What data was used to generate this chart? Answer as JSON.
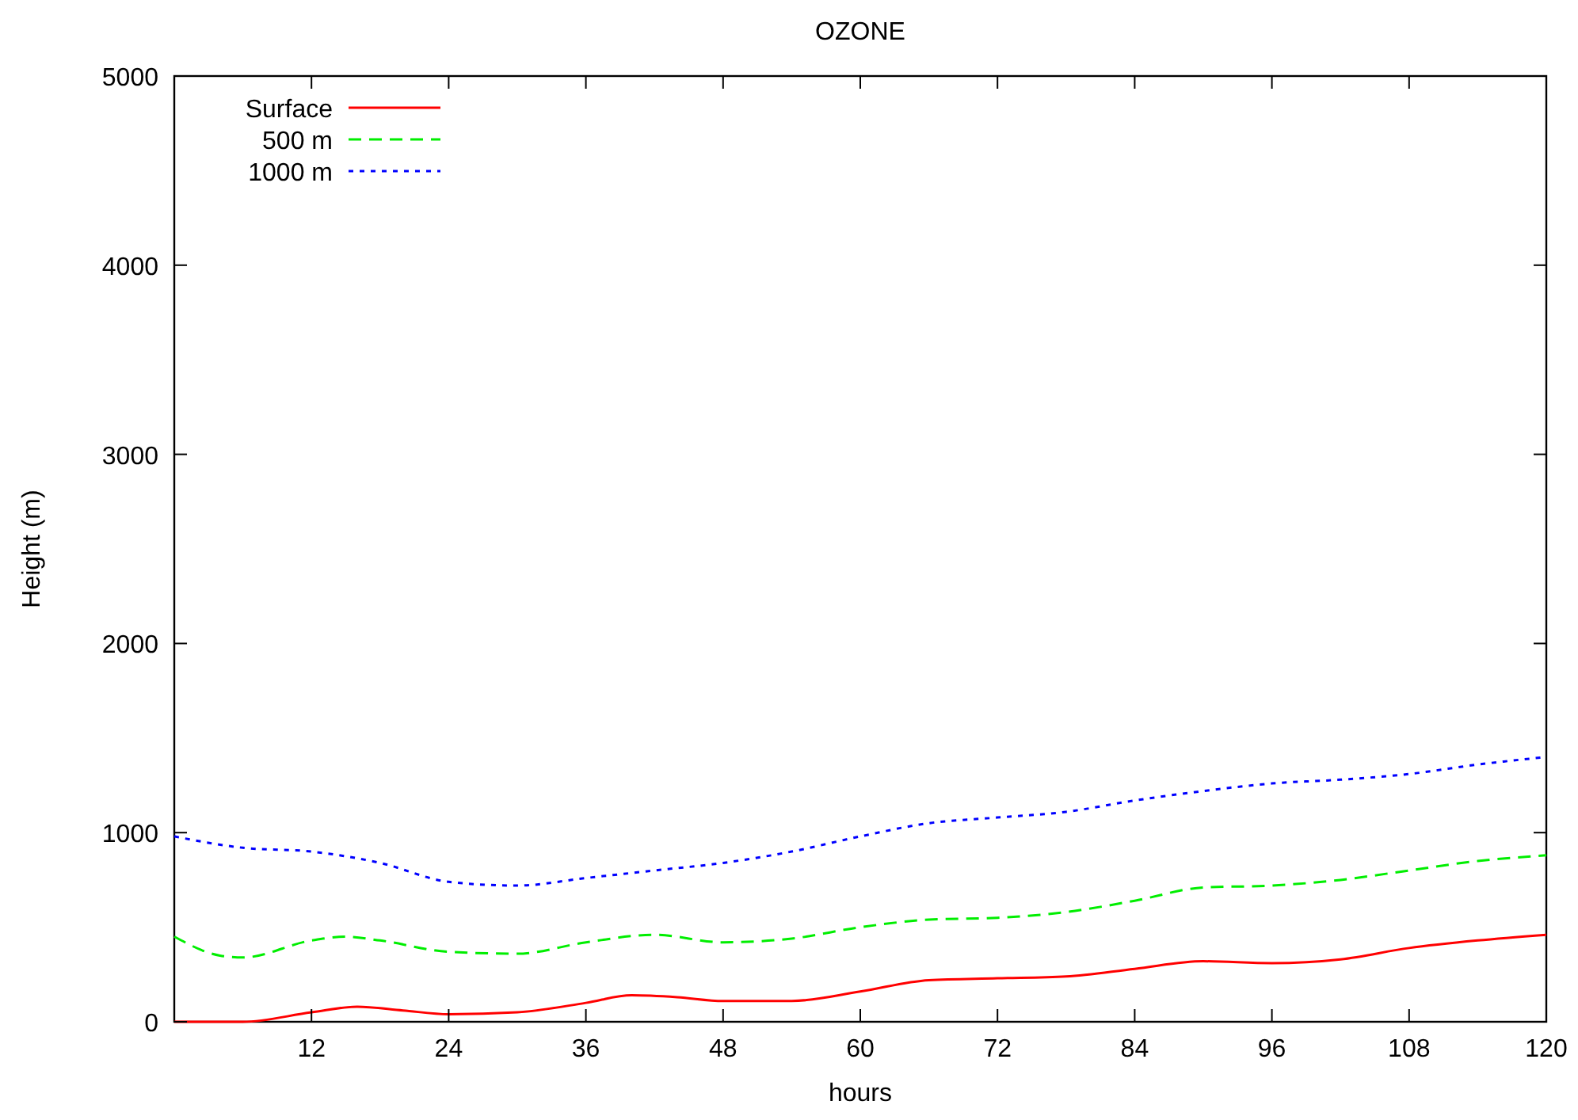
{
  "chart_data": {
    "type": "line",
    "title": "OZONE",
    "xlabel": "hours",
    "ylabel": "Height (m)",
    "xlim": [
      0,
      120
    ],
    "ylim": [
      0,
      5000
    ],
    "xticks": [
      12,
      24,
      36,
      48,
      60,
      72,
      84,
      96,
      108,
      120
    ],
    "yticks": [
      0,
      1000,
      2000,
      3000,
      4000,
      5000
    ],
    "legend": "top left",
    "grid": false,
    "series": [
      {
        "name": "Surface",
        "color": "#ff0000",
        "line_style": "solid",
        "x": [
          0,
          6,
          12,
          16,
          20,
          24,
          30,
          36,
          40,
          44,
          48,
          54,
          60,
          66,
          72,
          78,
          84,
          90,
          96,
          102,
          108,
          114,
          120
        ],
        "values": [
          0,
          0,
          50,
          80,
          60,
          40,
          50,
          100,
          140,
          130,
          110,
          110,
          160,
          220,
          230,
          240,
          280,
          320,
          310,
          330,
          390,
          430,
          460
        ]
      },
      {
        "name": "500 m",
        "color": "#00ee00",
        "line_style": "dashed",
        "x": [
          0,
          4,
          6,
          12,
          15,
          18,
          24,
          30,
          36,
          42,
          48,
          54,
          60,
          66,
          72,
          78,
          84,
          90,
          96,
          102,
          108,
          114,
          120
        ],
        "values": [
          450,
          350,
          340,
          430,
          450,
          430,
          370,
          360,
          420,
          460,
          420,
          440,
          500,
          540,
          550,
          580,
          640,
          710,
          720,
          750,
          800,
          850,
          880
        ]
      },
      {
        "name": "1000 m",
        "color": "#0000ff",
        "line_style": "dotted",
        "x": [
          0,
          6,
          12,
          18,
          24,
          30,
          36,
          42,
          48,
          54,
          60,
          66,
          72,
          78,
          84,
          90,
          96,
          102,
          108,
          114,
          120
        ],
        "values": [
          980,
          920,
          900,
          840,
          740,
          720,
          760,
          800,
          840,
          900,
          980,
          1050,
          1080,
          1110,
          1170,
          1220,
          1260,
          1280,
          1310,
          1360,
          1400
        ]
      }
    ]
  }
}
